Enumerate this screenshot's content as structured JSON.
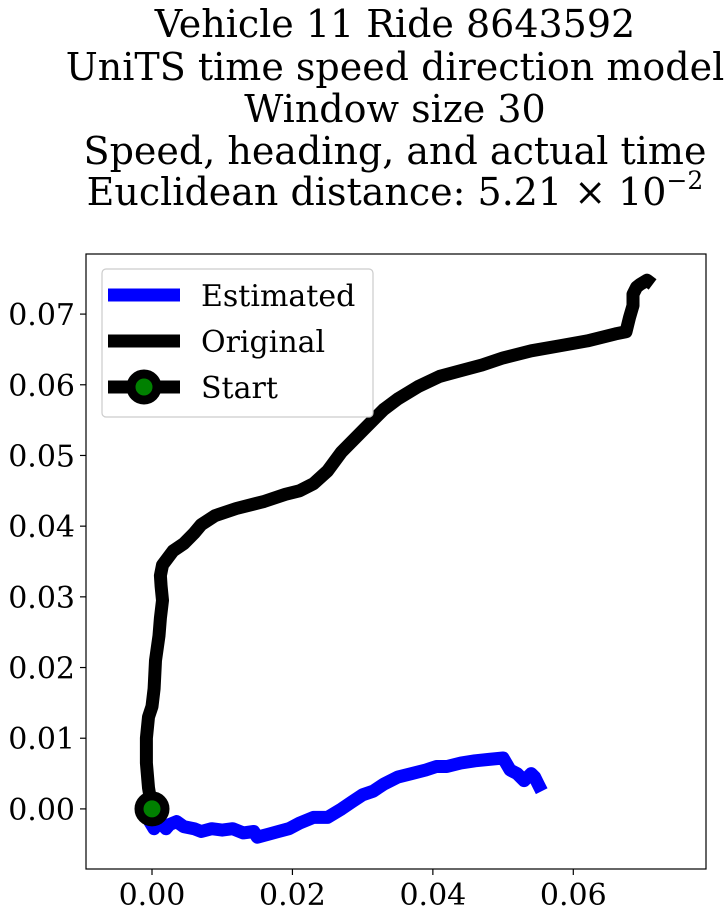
{
  "chart_data": {
    "type": "line",
    "title_lines": [
      "Vehicle 11 Ride 8643592",
      "UniTS time speed direction model",
      "Window size 30",
      "Speed, heading, and actual time",
      "Euclidean distance: 5.21 × 10",
      "−2"
    ],
    "xlabel": "",
    "ylabel": "",
    "xlim": [
      -0.0094,
      0.0789
    ],
    "ylim": [
      -0.0085,
      0.0785
    ],
    "x_ticks": [
      0.0,
      0.02,
      0.04,
      0.06
    ],
    "x_tick_labels": [
      "0.00",
      "0.02",
      "0.04",
      "0.06"
    ],
    "y_ticks": [
      0.0,
      0.01,
      0.02,
      0.03,
      0.04,
      0.05,
      0.06,
      0.07
    ],
    "y_tick_labels": [
      "0.00",
      "0.01",
      "0.02",
      "0.03",
      "0.04",
      "0.05",
      "0.06",
      "0.07"
    ],
    "grid": false,
    "legend_position": "top-left",
    "legend": [
      {
        "label": "Estimated",
        "color": "#0000ff",
        "kind": "line"
      },
      {
        "label": "Original",
        "color": "#000000",
        "kind": "line"
      },
      {
        "label": "Start",
        "color": "#000000",
        "marker_color": "#008000",
        "kind": "marker"
      }
    ],
    "series": [
      {
        "name": "Estimated",
        "color": "#0000ff",
        "x": [
          0.0,
          -0.0005,
          0.0003,
          0.001,
          0.002,
          0.0025,
          0.0035,
          0.0045,
          0.006,
          0.007,
          0.0085,
          0.01,
          0.0115,
          0.013,
          0.0145,
          0.015,
          0.0165,
          0.018,
          0.0195,
          0.021,
          0.023,
          0.025,
          0.027,
          0.0285,
          0.03,
          0.0315,
          0.033,
          0.035,
          0.037,
          0.039,
          0.0405,
          0.042,
          0.044,
          0.046,
          0.048,
          0.05,
          0.051,
          0.052,
          0.053,
          0.054,
          0.0545,
          0.055,
          0.0555
        ],
        "y": [
          0.0,
          -0.0015,
          -0.0028,
          -0.0018,
          -0.0028,
          -0.0022,
          -0.0018,
          -0.0025,
          -0.0028,
          -0.0032,
          -0.0028,
          -0.003,
          -0.0028,
          -0.0034,
          -0.0032,
          -0.004,
          -0.0036,
          -0.0032,
          -0.0028,
          -0.002,
          -0.0012,
          -0.0012,
          0.0,
          0.001,
          0.002,
          0.0025,
          0.0035,
          0.0045,
          0.005,
          0.0055,
          0.006,
          0.006,
          0.0065,
          0.0068,
          0.007,
          0.0072,
          0.0055,
          0.005,
          0.004,
          0.005,
          0.0045,
          0.0035,
          0.0025
        ]
      },
      {
        "name": "Original",
        "color": "#000000",
        "x": [
          0.0,
          -0.0005,
          -0.0008,
          -0.0008,
          -0.0005,
          0.0,
          0.0003,
          0.0005,
          0.001,
          0.0012,
          0.0015,
          0.0013,
          0.0012,
          0.0015,
          0.003,
          0.0045,
          0.006,
          0.007,
          0.009,
          0.012,
          0.016,
          0.019,
          0.021,
          0.023,
          0.025,
          0.027,
          0.03,
          0.033,
          0.035,
          0.038,
          0.041,
          0.044,
          0.047,
          0.05,
          0.054,
          0.058,
          0.062,
          0.066,
          0.0675,
          0.068,
          0.0685,
          0.0685,
          0.069,
          0.0695,
          0.07,
          0.0705,
          0.0713
        ],
        "y": [
          0.0,
          0.003,
          0.0065,
          0.01,
          0.013,
          0.0145,
          0.017,
          0.021,
          0.0245,
          0.027,
          0.0295,
          0.0315,
          0.033,
          0.0345,
          0.0365,
          0.0375,
          0.039,
          0.0402,
          0.0415,
          0.0425,
          0.0435,
          0.0445,
          0.045,
          0.046,
          0.0478,
          0.0505,
          0.0535,
          0.0565,
          0.058,
          0.0598,
          0.0612,
          0.062,
          0.0628,
          0.0638,
          0.0648,
          0.0655,
          0.0662,
          0.0672,
          0.0675,
          0.0695,
          0.0712,
          0.0728,
          0.0738,
          0.0742,
          0.0745,
          0.0748,
          0.0742
        ]
      }
    ],
    "start_point": {
      "x": 0.0,
      "y": 0.0,
      "edge_color": "#000000",
      "face_color": "#008000"
    }
  }
}
